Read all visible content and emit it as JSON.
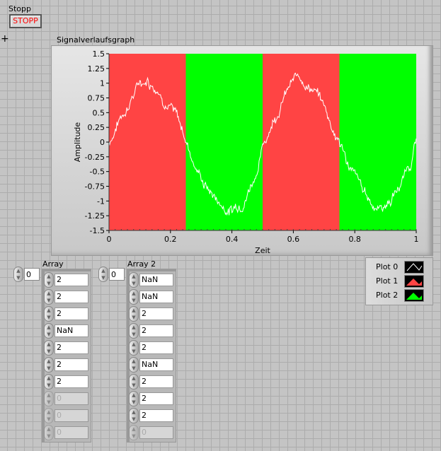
{
  "stop_control": {
    "label": "Stopp",
    "button_label": "STOPP",
    "text_color": "#ff0000"
  },
  "graph": {
    "title": "Signalverlaufsgraph"
  },
  "chart_data": {
    "type": "line",
    "xlabel": "Zeit",
    "ylabel": "Amplitude",
    "xlim": [
      0,
      1
    ],
    "ylim": [
      -1.5,
      1.5
    ],
    "xticks": [
      "0",
      "0.2",
      "0.4",
      "0.6",
      "0.8",
      "1"
    ],
    "yticks": [
      "1.5",
      "1.25",
      "1",
      "0.75",
      "0.5",
      "0.25",
      "0",
      "-0.25",
      "-0.5",
      "-0.75",
      "-1",
      "-1.25",
      "-1.5"
    ],
    "grid": false,
    "bands": [
      {
        "x": [
          0,
          0.25
        ],
        "color": "#ff4444"
      },
      {
        "x": [
          0.25,
          0.5
        ],
        "color": "#00ff00"
      },
      {
        "x": [
          0.5,
          0.75
        ],
        "color": "#ff4444"
      },
      {
        "x": [
          0.75,
          1
        ],
        "color": "#00ff00"
      }
    ],
    "series": [
      {
        "color": "#ffffff",
        "x": [
          0,
          0.025,
          0.05,
          0.075,
          0.1,
          0.125,
          0.15,
          0.175,
          0.2,
          0.225,
          0.25,
          0.275,
          0.3,
          0.325,
          0.35,
          0.375,
          0.4,
          0.425,
          0.45,
          0.475,
          0.5,
          0.525,
          0.55,
          0.575,
          0.6,
          0.625,
          0.65,
          0.675,
          0.7,
          0.725,
          0.75,
          0.775,
          0.8,
          0.825,
          0.85,
          0.875,
          0.9,
          0.925,
          0.95,
          0.975,
          1
        ],
        "y": [
          0,
          0.3,
          0.55,
          0.8,
          1.0,
          1.1,
          1.0,
          0.85,
          0.65,
          0.35,
          0.05,
          -0.3,
          -0.6,
          -0.8,
          -0.95,
          -1.1,
          -1.15,
          -1.0,
          -0.8,
          -0.5,
          -0.1,
          0.3,
          0.6,
          0.85,
          1.0,
          1.1,
          1.0,
          0.85,
          0.6,
          0.3,
          0,
          -0.3,
          -0.6,
          -0.85,
          -1.0,
          -1.1,
          -1.05,
          -0.9,
          -0.7,
          -0.4,
          0
        ]
      }
    ],
    "legend": {
      "placement": "bottom-right",
      "entries": [
        "Plot 0",
        "Plot 1",
        "Plot 2"
      ]
    }
  },
  "legend_colors": [
    "#ffffff",
    "#ff4444",
    "#00ff00"
  ],
  "array1": {
    "label": "Array",
    "index": "0",
    "values": [
      "2",
      "2",
      "2",
      "NaN",
      "2",
      "2",
      "2",
      "0",
      "0",
      "0"
    ],
    "enabled_count": 7
  },
  "array2": {
    "label": "Array 2",
    "index": "0",
    "values": [
      "NaN",
      "NaN",
      "2",
      "2",
      "2",
      "NaN",
      "2",
      "2",
      "2",
      "0"
    ],
    "enabled_count": 9
  }
}
